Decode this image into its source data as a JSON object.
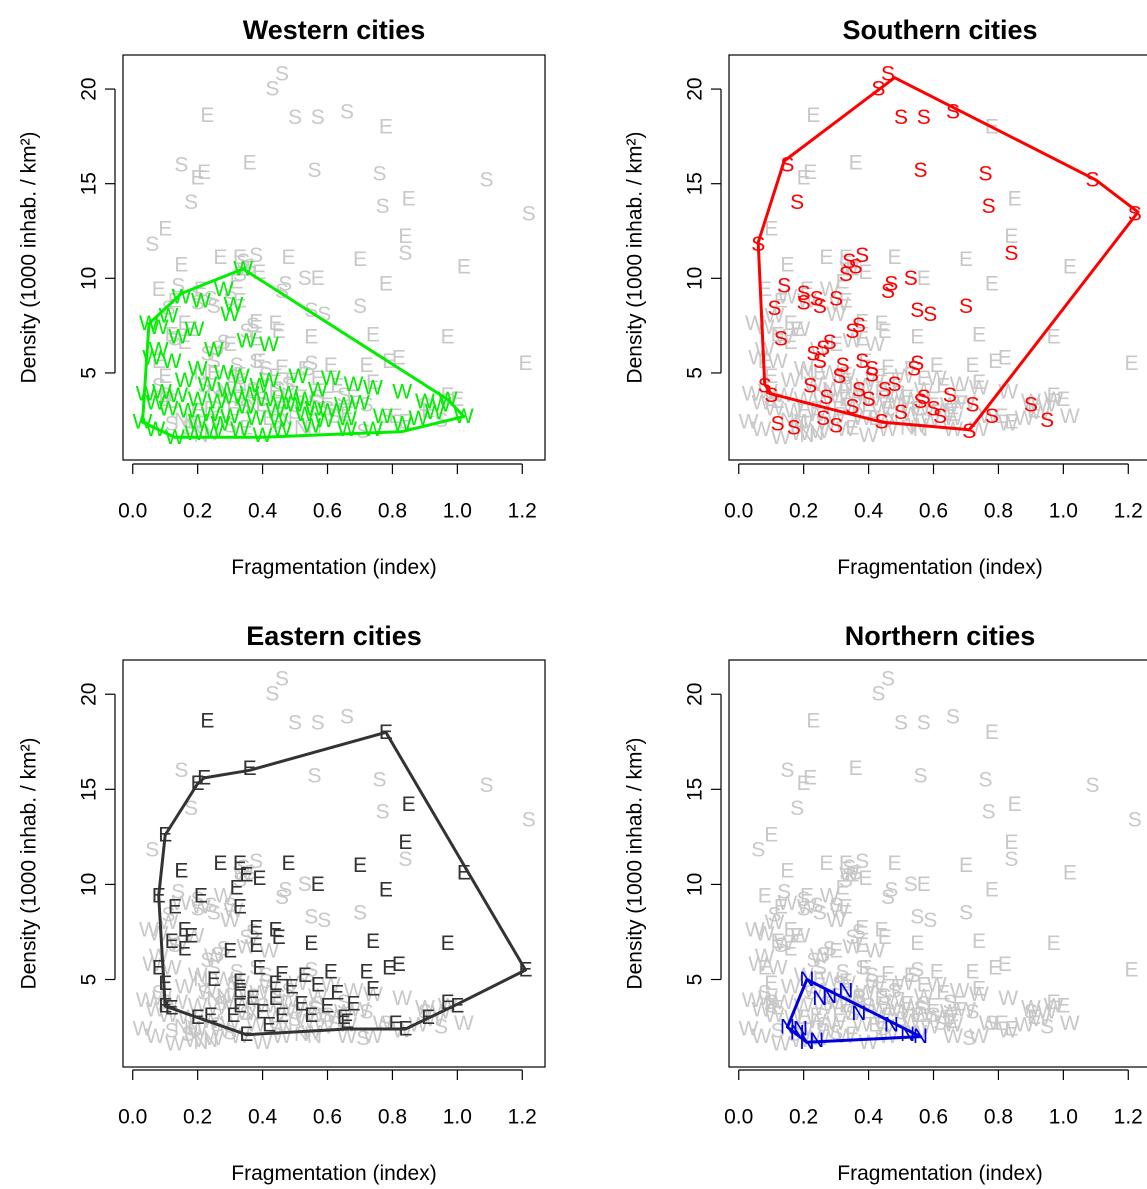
{
  "figure": {
    "background": "#ffffff",
    "colors": {
      "other_points": "#c8c8c8",
      "West": "#00ee00",
      "South": "#ff0000",
      "East": "#333333",
      "North": "#0000dd"
    }
  },
  "chart_data": [
    {
      "type": "scatter",
      "title": "Western cities",
      "xlabel": "Fragmentation (index)",
      "ylabel": "Density (1000 inhab. / km²)",
      "xlim": [
        -0.03,
        1.27
      ],
      "ylim": [
        0.4,
        21.8
      ],
      "xticks": [
        "0.0",
        "0.2",
        "0.4",
        "0.6",
        "0.8",
        "1.0",
        "1.2"
      ],
      "yticks": [
        "5",
        "10",
        "15",
        "20"
      ],
      "highlight": "West",
      "highlight_letter": "W",
      "hull": [
        [
          0.34,
          10.5
        ],
        [
          0.97,
          3.6
        ],
        [
          1.02,
          2.7
        ],
        [
          0.83,
          1.9
        ],
        [
          0.4,
          1.6
        ],
        [
          0.13,
          1.6
        ],
        [
          0.03,
          2.4
        ],
        [
          0.05,
          7.6
        ],
        [
          0.15,
          9.2
        ]
      ],
      "grid": false,
      "legend": "none"
    },
    {
      "type": "scatter",
      "title": "Southern cities",
      "xlabel": "Fragmentation (index)",
      "ylabel": "Density (1000 inhab. / km²)",
      "xlim": [
        -0.03,
        1.27
      ],
      "ylim": [
        0.4,
        21.8
      ],
      "xticks": [
        "0.0",
        "0.2",
        "0.4",
        "0.6",
        "0.8",
        "1.0",
        "1.2"
      ],
      "yticks": [
        "5",
        "10",
        "15",
        "20"
      ],
      "highlight": "South",
      "highlight_letter": "S",
      "hull": [
        [
          0.48,
          20.6
        ],
        [
          1.1,
          15.2
        ],
        [
          1.23,
          13.5
        ],
        [
          0.73,
          2.4
        ],
        [
          0.71,
          2.0
        ],
        [
          0.44,
          2.4
        ],
        [
          0.1,
          3.9
        ],
        [
          0.08,
          4.4
        ],
        [
          0.06,
          11.9
        ],
        [
          0.14,
          16.2
        ]
      ],
      "grid": false,
      "legend": "none"
    },
    {
      "type": "scatter",
      "title": "Eastern cities",
      "xlabel": "Fragmentation (index)",
      "ylabel": "Density (1000 inhab. / km²)",
      "xlim": [
        -0.03,
        1.27
      ],
      "ylim": [
        0.4,
        21.8
      ],
      "xticks": [
        "0.0",
        "0.2",
        "0.4",
        "0.6",
        "0.8",
        "1.0",
        "1.2"
      ],
      "yticks": [
        "5",
        "10",
        "15",
        "20"
      ],
      "highlight": "East",
      "highlight_letter": "E",
      "hull": [
        [
          0.78,
          18.0
        ],
        [
          1.21,
          5.5
        ],
        [
          1.0,
          3.7
        ],
        [
          0.84,
          2.4
        ],
        [
          0.66,
          2.4
        ],
        [
          0.35,
          2.1
        ],
        [
          0.2,
          3.0
        ],
        [
          0.1,
          3.6
        ],
        [
          0.08,
          9.4
        ],
        [
          0.1,
          12.6
        ],
        [
          0.2,
          15.3
        ],
        [
          0.22,
          15.6
        ],
        [
          0.36,
          16.0
        ]
      ],
      "grid": false,
      "legend": "none"
    },
    {
      "type": "scatter",
      "title": "Northern cities",
      "xlabel": "Fragmentation (index)",
      "ylabel": "Density (1000 inhab. / km²)",
      "xlim": [
        -0.03,
        1.27
      ],
      "ylim": [
        0.4,
        21.8
      ],
      "xticks": [
        "0.0",
        "0.2",
        "0.4",
        "0.6",
        "0.8",
        "1.0",
        "1.2"
      ],
      "yticks": [
        "5",
        "10",
        "15",
        "20"
      ],
      "highlight": "North",
      "highlight_letter": "N",
      "hull": [
        [
          0.21,
          5.0
        ],
        [
          0.56,
          2.0
        ],
        [
          0.21,
          1.7
        ],
        [
          0.15,
          2.5
        ]
      ],
      "grid": false,
      "legend": "none"
    }
  ],
  "points": {
    "S": [
      [
        0.46,
        20.8
      ],
      [
        0.43,
        20.0
      ],
      [
        0.5,
        18.5
      ],
      [
        0.57,
        18.5
      ],
      [
        0.66,
        18.8
      ],
      [
        0.15,
        16.0
      ],
      [
        0.56,
        15.7
      ],
      [
        0.76,
        15.5
      ],
      [
        1.09,
        15.2
      ],
      [
        0.18,
        14.0
      ],
      [
        0.77,
        13.8
      ],
      [
        1.22,
        13.4
      ],
      [
        0.06,
        11.8
      ],
      [
        0.84,
        11.3
      ],
      [
        0.38,
        11.2
      ],
      [
        0.34,
        10.9
      ],
      [
        0.36,
        10.6
      ],
      [
        0.33,
        10.2
      ],
      [
        0.53,
        10.0
      ],
      [
        0.47,
        9.7
      ],
      [
        0.14,
        9.6
      ],
      [
        0.46,
        9.3
      ],
      [
        0.2,
        9.2
      ],
      [
        0.24,
        8.9
      ],
      [
        0.3,
        8.9
      ],
      [
        0.2,
        8.7
      ],
      [
        0.25,
        8.5
      ],
      [
        0.11,
        8.4
      ],
      [
        0.55,
        8.3
      ],
      [
        0.7,
        8.5
      ],
      [
        0.59,
        8.1
      ],
      [
        0.37,
        7.5
      ],
      [
        0.35,
        7.2
      ],
      [
        0.13,
        6.8
      ],
      [
        0.28,
        6.6
      ],
      [
        0.26,
        6.3
      ],
      [
        0.23,
        6.0
      ],
      [
        0.25,
        5.6
      ],
      [
        0.38,
        5.6
      ],
      [
        0.32,
        5.4
      ],
      [
        0.55,
        5.5
      ],
      [
        0.41,
        5.2
      ],
      [
        0.54,
        5.2
      ],
      [
        0.41,
        4.9
      ],
      [
        0.31,
        4.8
      ],
      [
        0.08,
        4.3
      ],
      [
        0.45,
        4.1
      ],
      [
        0.1,
        3.8
      ],
      [
        0.56,
        3.5
      ],
      [
        0.72,
        3.3
      ],
      [
        0.44,
        2.4
      ],
      [
        0.71,
        1.9
      ],
      [
        0.22,
        4.3
      ],
      [
        0.27,
        3.7
      ],
      [
        0.35,
        3.2
      ],
      [
        0.4,
        3.6
      ],
      [
        0.5,
        2.9
      ],
      [
        0.6,
        3.1
      ],
      [
        0.65,
        3.8
      ],
      [
        0.78,
        2.7
      ],
      [
        0.9,
        3.3
      ],
      [
        0.95,
        2.5
      ],
      [
        0.3,
        2.2
      ],
      [
        0.26,
        2.6
      ],
      [
        0.62,
        2.7
      ],
      [
        0.17,
        2.1
      ],
      [
        0.12,
        2.3
      ],
      [
        0.48,
        4.4
      ],
      [
        0.57,
        3.7
      ],
      [
        0.37,
        4.1
      ]
    ],
    "E": [
      [
        0.78,
        18.0
      ],
      [
        0.23,
        18.6
      ],
      [
        0.36,
        16.1
      ],
      [
        0.2,
        15.3
      ],
      [
        0.22,
        15.6
      ],
      [
        0.85,
        14.2
      ],
      [
        0.1,
        12.6
      ],
      [
        0.84,
        12.2
      ],
      [
        0.33,
        11.1
      ],
      [
        0.48,
        11.1
      ],
      [
        0.7,
        11.0
      ],
      [
        0.15,
        10.7
      ],
      [
        1.02,
        10.6
      ],
      [
        0.35,
        10.5
      ],
      [
        0.39,
        10.3
      ],
      [
        0.57,
        10.0
      ],
      [
        0.21,
        9.4
      ],
      [
        0.08,
        9.4
      ],
      [
        0.32,
        9.8
      ],
      [
        0.78,
        9.7
      ],
      [
        0.33,
        8.8
      ],
      [
        0.16,
        7.6
      ],
      [
        0.38,
        7.7
      ],
      [
        0.44,
        7.6
      ],
      [
        0.45,
        7.2
      ],
      [
        0.12,
        7.0
      ],
      [
        0.18,
        7.3
      ],
      [
        0.3,
        6.5
      ],
      [
        0.38,
        6.8
      ],
      [
        0.55,
        6.9
      ],
      [
        0.74,
        7.0
      ],
      [
        0.97,
        6.9
      ],
      [
        0.82,
        5.8
      ],
      [
        0.39,
        5.6
      ],
      [
        0.46,
        5.3
      ],
      [
        0.53,
        5.2
      ],
      [
        0.61,
        5.4
      ],
      [
        0.72,
        5.4
      ],
      [
        0.79,
        5.6
      ],
      [
        1.21,
        5.5
      ],
      [
        0.25,
        5.0
      ],
      [
        0.33,
        4.9
      ],
      [
        0.44,
        4.8
      ],
      [
        0.49,
        4.6
      ],
      [
        0.57,
        4.7
      ],
      [
        0.63,
        4.3
      ],
      [
        0.74,
        4.5
      ],
      [
        0.33,
        4.4
      ],
      [
        0.37,
        4.0
      ],
      [
        0.44,
        4.0
      ],
      [
        0.52,
        3.7
      ],
      [
        0.33,
        3.6
      ],
      [
        0.6,
        3.6
      ],
      [
        0.68,
        3.7
      ],
      [
        0.97,
        3.8
      ],
      [
        1.0,
        3.6
      ],
      [
        0.1,
        3.6
      ],
      [
        0.12,
        3.5
      ],
      [
        0.2,
        3.0
      ],
      [
        0.24,
        3.1
      ],
      [
        0.31,
        3.1
      ],
      [
        0.4,
        3.3
      ],
      [
        0.46,
        3.1
      ],
      [
        0.55,
        3.1
      ],
      [
        0.65,
        3.0
      ],
      [
        0.66,
        2.8
      ],
      [
        0.42,
        2.6
      ],
      [
        0.35,
        2.1
      ],
      [
        0.81,
        2.7
      ],
      [
        0.84,
        2.4
      ],
      [
        0.91,
        3.0
      ],
      [
        0.1,
        4.8
      ],
      [
        0.08,
        5.6
      ],
      [
        0.16,
        6.6
      ],
      [
        0.13,
        8.8
      ],
      [
        0.27,
        11.1
      ]
    ],
    "W": [
      [
        0.05,
        7.6
      ],
      [
        0.08,
        7.4
      ],
      [
        0.11,
        8.0
      ],
      [
        0.15,
        9.0
      ],
      [
        0.21,
        8.8
      ],
      [
        0.31,
        8.6
      ],
      [
        0.34,
        10.5
      ],
      [
        0.28,
        9.4
      ],
      [
        0.19,
        7.3
      ],
      [
        0.14,
        6.9
      ],
      [
        0.08,
        6.2
      ],
      [
        0.06,
        5.8
      ],
      [
        0.12,
        5.6
      ],
      [
        0.2,
        5.2
      ],
      [
        0.28,
        5.0
      ],
      [
        0.33,
        4.8
      ],
      [
        0.42,
        4.6
      ],
      [
        0.51,
        4.8
      ],
      [
        0.61,
        4.7
      ],
      [
        0.68,
        4.4
      ],
      [
        0.74,
        4.2
      ],
      [
        0.83,
        4.0
      ],
      [
        0.97,
        3.6
      ],
      [
        1.02,
        2.7
      ],
      [
        0.93,
        2.9
      ],
      [
        0.88,
        2.6
      ],
      [
        0.83,
        2.3
      ],
      [
        0.74,
        2.0
      ],
      [
        0.66,
        2.0
      ],
      [
        0.55,
        2.2
      ],
      [
        0.46,
        2.0
      ],
      [
        0.4,
        1.7
      ],
      [
        0.33,
        2.0
      ],
      [
        0.25,
        1.9
      ],
      [
        0.19,
        1.8
      ],
      [
        0.13,
        1.6
      ],
      [
        0.07,
        2.0
      ],
      [
        0.03,
        2.4
      ],
      [
        0.04,
        3.9
      ],
      [
        0.09,
        4.0
      ],
      [
        0.14,
        3.8
      ],
      [
        0.2,
        3.6
      ],
      [
        0.26,
        3.5
      ],
      [
        0.31,
        3.7
      ],
      [
        0.36,
        3.9
      ],
      [
        0.41,
        3.6
      ],
      [
        0.46,
        3.4
      ],
      [
        0.5,
        3.3
      ],
      [
        0.56,
        3.1
      ],
      [
        0.6,
        3.0
      ],
      [
        0.65,
        3.3
      ],
      [
        0.7,
        3.4
      ],
      [
        0.53,
        2.8
      ],
      [
        0.45,
        2.5
      ],
      [
        0.38,
        2.6
      ],
      [
        0.3,
        2.7
      ],
      [
        0.24,
        2.8
      ],
      [
        0.17,
        3.0
      ],
      [
        0.11,
        3.1
      ],
      [
        0.07,
        3.4
      ],
      [
        0.23,
        4.4
      ],
      [
        0.29,
        4.1
      ],
      [
        0.35,
        3.2
      ],
      [
        0.48,
        3.9
      ],
      [
        0.57,
        4.1
      ],
      [
        0.25,
        6.2
      ],
      [
        0.35,
        6.7
      ],
      [
        0.3,
        8.1
      ],
      [
        0.42,
        6.5
      ],
      [
        0.39,
        4.3
      ],
      [
        0.44,
        3.0
      ],
      [
        0.2,
        2.4
      ],
      [
        0.59,
        2.5
      ],
      [
        0.66,
        2.6
      ],
      [
        0.77,
        2.7
      ],
      [
        0.9,
        3.5
      ],
      [
        0.95,
        3.3
      ],
      [
        0.16,
        4.6
      ],
      [
        0.27,
        2.3
      ],
      [
        0.53,
        3.6
      ]
    ],
    "N": [
      [
        0.21,
        5.0
      ],
      [
        0.56,
        2.0
      ],
      [
        0.21,
        1.7
      ],
      [
        0.15,
        2.5
      ],
      [
        0.25,
        4.0
      ],
      [
        0.28,
        4.1
      ],
      [
        0.33,
        4.4
      ],
      [
        0.37,
        3.2
      ],
      [
        0.47,
        2.6
      ],
      [
        0.52,
        2.1
      ],
      [
        0.18,
        2.2
      ],
      [
        0.24,
        1.8
      ],
      [
        0.19,
        2.4
      ]
    ]
  }
}
